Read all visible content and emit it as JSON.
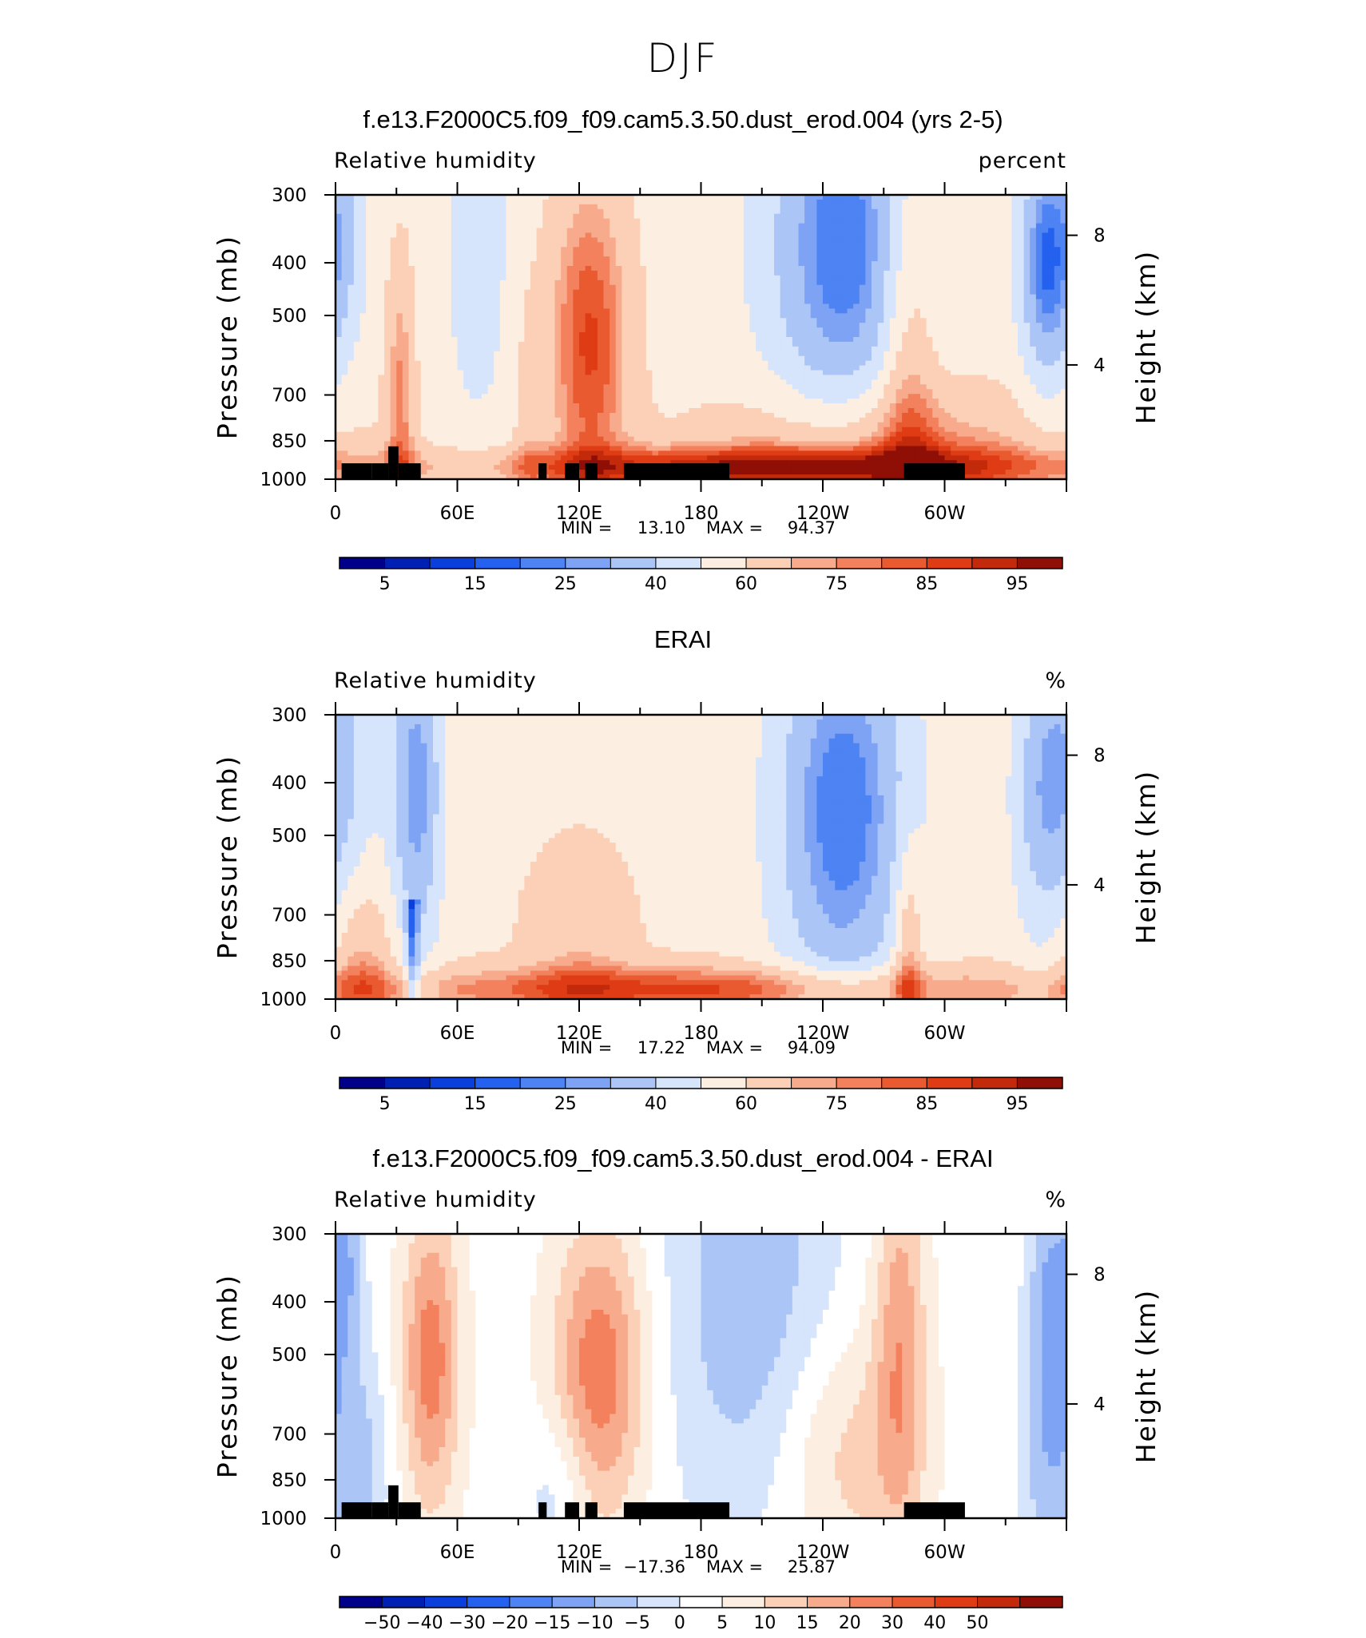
{
  "title": "DJF",
  "colors": {
    "rh_levels": [
      "#00008b",
      "#0020b4",
      "#0a3fdc",
      "#2561ef",
      "#4d83f2",
      "#7ea3f4",
      "#abc5f7",
      "#d6e5fb",
      "#fdeee2",
      "#fbd0b6",
      "#f8ab8c",
      "#f3815d",
      "#ea5a31",
      "#df3c15",
      "#c22a0b",
      "#8f0f06"
    ],
    "diff_levels": [
      "#00008b",
      "#0020b4",
      "#0a3fdc",
      "#2561ef",
      "#4d83f2",
      "#7ea3f4",
      "#abc5f7",
      "#d6e5fb",
      "#ffffff",
      "#fdeee2",
      "#fbd0b6",
      "#f8ab8c",
      "#f3815d",
      "#ea5a31",
      "#df3c15",
      "#c22a0b",
      "#8f0f06"
    ],
    "land": "#000000"
  },
  "panels": [
    {
      "title": "f.e13.F2000C5.f09_f09.cam5.3.50.dust_erod.004 (yrs 2-5)",
      "left_label": "Relative humidity",
      "right_label": "percent",
      "y_axis_label": "Pressure (mb)",
      "y2_axis_label": "Height (km)",
      "y_ticks": [
        "300",
        "400",
        "500",
        "700",
        "850",
        "1000"
      ],
      "y2_ticks": [
        "8",
        "4"
      ],
      "x_ticks": [
        "0",
        "60E",
        "120E",
        "180",
        "120W",
        "60W"
      ],
      "min_label": "MIN =",
      "min_value": "13.10",
      "max_label": "MAX =",
      "max_value": "94.37",
      "colorbar_labels": [
        "5",
        "15",
        "25",
        "40",
        "60",
        "75",
        "85",
        "95"
      ]
    },
    {
      "title": "ERAI",
      "left_label": "Relative humidity",
      "right_label": "%",
      "y_axis_label": "Pressure (mb)",
      "y2_axis_label": "Height (km)",
      "y_ticks": [
        "300",
        "400",
        "500",
        "700",
        "850",
        "1000"
      ],
      "y2_ticks": [
        "8",
        "4"
      ],
      "x_ticks": [
        "0",
        "60E",
        "120E",
        "180",
        "120W",
        "60W"
      ],
      "min_label": "MIN =",
      "min_value": "17.22",
      "max_label": "MAX =",
      "max_value": "94.09",
      "colorbar_labels": [
        "5",
        "15",
        "25",
        "40",
        "60",
        "75",
        "85",
        "95"
      ]
    },
    {
      "title": "f.e13.F2000C5.f09_f09.cam5.3.50.dust_erod.004 - ERAI",
      "left_label": "Relative humidity",
      "right_label": "%",
      "y_axis_label": "Pressure (mb)",
      "y2_axis_label": "Height (km)",
      "y_ticks": [
        "300",
        "400",
        "500",
        "700",
        "850",
        "1000"
      ],
      "y2_ticks": [
        "8",
        "4"
      ],
      "x_ticks": [
        "0",
        "60E",
        "120E",
        "180",
        "120W",
        "60W"
      ],
      "min_label": "MIN =",
      "min_value": "−17.36",
      "max_label": "MAX =",
      "max_value": "25.87",
      "colorbar_labels": [
        "−50",
        "−40",
        "−30",
        "−20",
        "−15",
        "−10",
        "−5",
        "0",
        "5",
        "10",
        "15",
        "20",
        "30",
        "40",
        "50"
      ]
    }
  ],
  "chart_data": [
    {
      "type": "heatmap",
      "title": "f.e13.F2000C5.f09_f09.cam5.3.50.dust_erod.004 (yrs 2-5)",
      "variable": "Relative humidity",
      "units": "percent",
      "xlabel": "",
      "ylabel": "Pressure (mb)",
      "y2label": "Height (km)",
      "xlim": [
        0,
        360
      ],
      "ylim": [
        1000,
        300
      ],
      "x_tick_values": [
        0,
        60,
        120,
        180,
        240,
        300
      ],
      "y_tick_values": [
        300,
        400,
        500,
        700,
        850,
        1000
      ],
      "contour_levels": [
        5,
        10,
        15,
        20,
        25,
        30,
        40,
        50,
        60,
        70,
        75,
        80,
        85,
        90,
        95
      ],
      "min": 13.1,
      "max": 94.37,
      "features": [
        {
          "lon": 125,
          "p": 550,
          "rh": 88
        },
        {
          "lon": 255,
          "p": 380,
          "rh": 22
        },
        {
          "lon": 350,
          "p": 400,
          "rh": 15
        },
        {
          "lon": 210,
          "p": 940,
          "rh": 92
        },
        {
          "lon": 280,
          "p": 900,
          "rh": 93
        },
        {
          "lon": 32,
          "p": 700,
          "rh": 85
        },
        {
          "lon": 5,
          "p": 380,
          "rh": 35
        }
      ],
      "topography_masked": true
    },
    {
      "type": "heatmap",
      "title": "ERAI",
      "variable": "Relative humidity",
      "units": "%",
      "xlabel": "",
      "ylabel": "Pressure (mb)",
      "y2label": "Height (km)",
      "xlim": [
        0,
        360
      ],
      "ylim": [
        1000,
        300
      ],
      "x_tick_values": [
        0,
        60,
        120,
        180,
        240,
        300
      ],
      "y_tick_values": [
        300,
        400,
        500,
        700,
        850,
        1000
      ],
      "contour_levels": [
        5,
        10,
        15,
        20,
        25,
        30,
        40,
        50,
        60,
        70,
        75,
        80,
        85,
        90,
        95
      ],
      "min": 17.22,
      "max": 94.09,
      "features": [
        {
          "lon": 250,
          "p": 450,
          "rh": 22
        },
        {
          "lon": 40,
          "p": 410,
          "rh": 28
        },
        {
          "lon": 350,
          "p": 430,
          "rh": 36
        },
        {
          "lon": 180,
          "p": 950,
          "rh": 88
        },
        {
          "lon": 280,
          "p": 900,
          "rh": 92
        },
        {
          "lon": 10,
          "p": 930,
          "rh": 90
        },
        {
          "lon": 120,
          "p": 800,
          "rh": 72
        }
      ],
      "topography_masked": false
    },
    {
      "type": "heatmap",
      "title": "f.e13.F2000C5.f09_f09.cam5.3.50.dust_erod.004 - ERAI",
      "variable": "Relative humidity",
      "units": "%",
      "xlabel": "",
      "ylabel": "Pressure (mb)",
      "y2label": "Height (km)",
      "xlim": [
        0,
        360
      ],
      "ylim": [
        1000,
        300
      ],
      "x_tick_values": [
        0,
        60,
        120,
        180,
        240,
        300
      ],
      "y_tick_values": [
        300,
        400,
        500,
        700,
        850,
        1000
      ],
      "contour_levels": [
        -50,
        -40,
        -30,
        -20,
        -15,
        -10,
        -5,
        0,
        5,
        10,
        15,
        20,
        30,
        40,
        50
      ],
      "min": -17.36,
      "max": 25.87,
      "features": [
        {
          "lon": 45,
          "p": 500,
          "diff": 22
        },
        {
          "lon": 130,
          "p": 540,
          "diff": 24
        },
        {
          "lon": 210,
          "p": 400,
          "diff": -8
        },
        {
          "lon": 350,
          "p": 400,
          "diff": -12
        },
        {
          "lon": 3,
          "p": 330,
          "diff": -10
        },
        {
          "lon": 280,
          "p": 450,
          "diff": 18
        },
        {
          "lon": 255,
          "p": 750,
          "diff": 12
        }
      ],
      "topography_masked": true
    }
  ]
}
